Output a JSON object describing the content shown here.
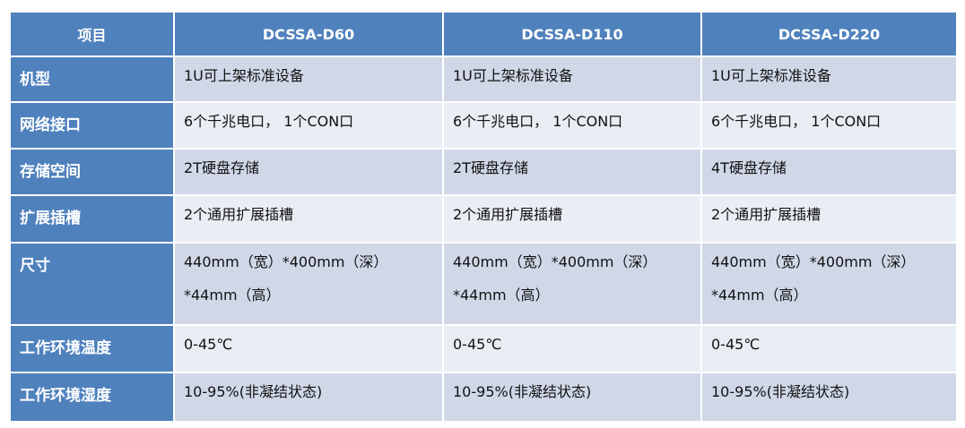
{
  "colors": {
    "header": "#4f81bd",
    "row_dark": "#d0d8e8",
    "row_light": "#e9edf4"
  },
  "table": {
    "headers": [
      "项目",
      "DCSSA-D60",
      "DCSSA-D110",
      "DCSSA-D220"
    ],
    "rows": [
      {
        "label": "机型",
        "values": [
          [
            "1U可上架标准设备"
          ],
          [
            "1U可上架标准设备"
          ],
          [
            "1U可上架标准设备"
          ]
        ]
      },
      {
        "label": "网络接口",
        "values": [
          [
            "6个千兆电口， 1个CON口"
          ],
          [
            "6个千兆电口， 1个CON口"
          ],
          [
            "6个千兆电口， 1个CON口"
          ]
        ]
      },
      {
        "label": "存储空间",
        "values": [
          [
            "2T硬盘存储"
          ],
          [
            "2T硬盘存储"
          ],
          [
            "4T硬盘存储"
          ]
        ]
      },
      {
        "label": "扩展插槽",
        "values": [
          [
            "2个通用扩展插槽"
          ],
          [
            "2个通用扩展插槽"
          ],
          [
            "2个通用扩展插槽"
          ]
        ]
      },
      {
        "label": "尺寸",
        "values": [
          [
            "440mm（宽）*400mm（深）",
            "*44mm（高）"
          ],
          [
            "440mm（宽）*400mm（深）",
            "*44mm（高）"
          ],
          [
            "440mm（宽）*400mm（深）",
            "*44mm（高）"
          ]
        ]
      },
      {
        "label": "工作环境温度",
        "values": [
          [
            "0-45℃"
          ],
          [
            "0-45℃"
          ],
          [
            "0-45℃"
          ]
        ]
      },
      {
        "label": "工作环境湿度",
        "values": [
          [
            "10-95%(非凝结状态)"
          ],
          [
            "10-95%(非凝结状态)"
          ],
          [
            "10-95%(非凝结状态)"
          ]
        ]
      }
    ]
  }
}
